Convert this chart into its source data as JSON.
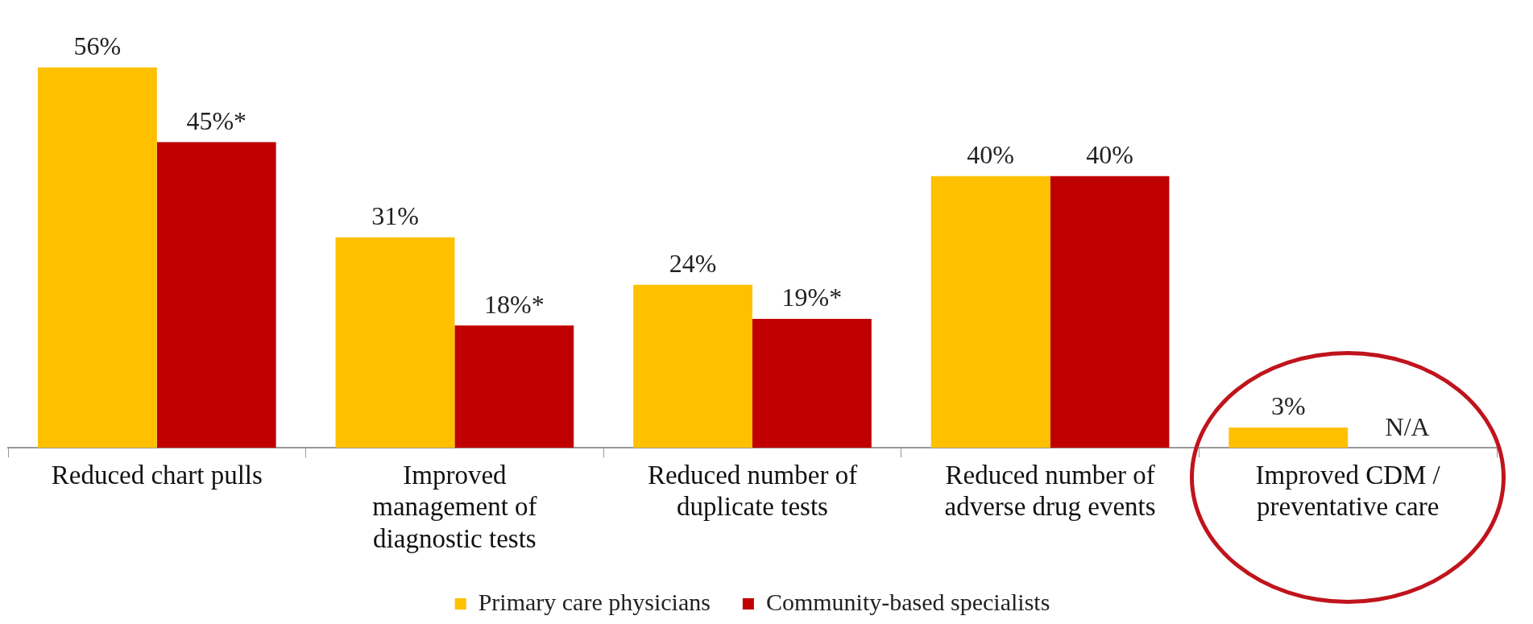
{
  "chart_data": {
    "type": "bar",
    "categories": [
      "Reduced chart pulls",
      "Improved\nmanagement of\ndiagnostic tests",
      "Reduced number of\nduplicate tests",
      "Reduced number of\nadverse drug events",
      "Improved CDM /\npreventative care"
    ],
    "series": [
      {
        "name": "Primary care physicians",
        "color": "#ffc000",
        "values": [
          56,
          31,
          24,
          40,
          3
        ],
        "value_labels": [
          "56%",
          "31%",
          "24%",
          "40%",
          "3%"
        ]
      },
      {
        "name": "Community-based specialists",
        "color": "#c00000",
        "values": [
          45,
          18,
          19,
          40,
          null
        ],
        "value_labels": [
          "45%*",
          "18%*",
          "19%*",
          "40%",
          "N/A"
        ]
      }
    ],
    "legend": "bottom",
    "grid": false
  }
}
